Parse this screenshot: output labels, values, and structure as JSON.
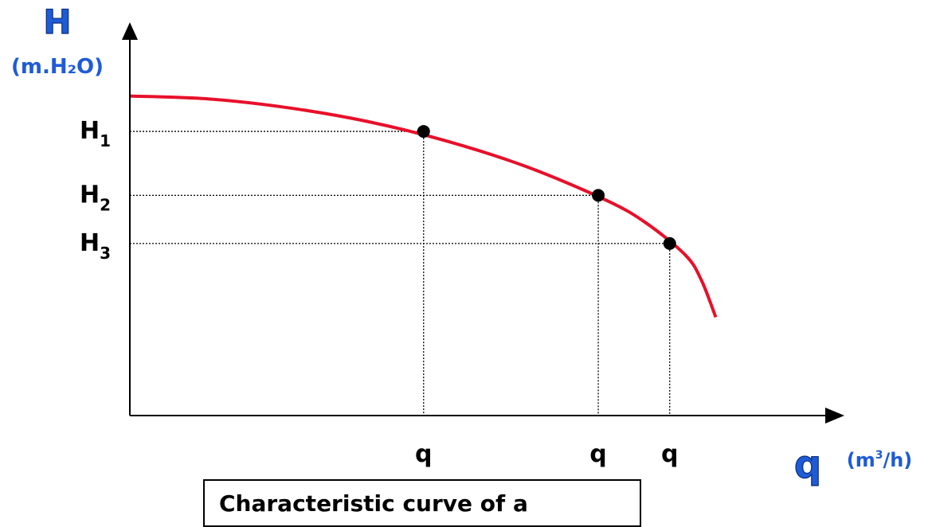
{
  "chart_data": {
    "type": "line",
    "title": "",
    "y_axis": {
      "symbol": "H",
      "unit_label": "(m.H₂O)"
    },
    "x_axis": {
      "symbol": "q",
      "unit_label_prefix": "(m",
      "unit_superscript": "3",
      "unit_label_suffix": "/h)"
    },
    "curve_color": "#e8102a",
    "axis_color": "#000000",
    "axis_title_color": "#1f5bd6",
    "series": [
      {
        "x": [
          0,
          10,
          20,
          30,
          40,
          50,
          60,
          65,
          70,
          72,
          73.8
        ],
        "y": [
          100,
          98.8,
          95.2,
          89.6,
          81.6,
          71.2,
          57.6,
          48.4,
          35.2,
          25,
          10
        ]
      }
    ],
    "operating_points": [
      {
        "label": "H",
        "subscript": "1",
        "x_label": "q",
        "x": 37,
        "y": 85.6
      },
      {
        "label": "H",
        "subscript": "2",
        "x_label": "q",
        "x": 59,
        "y": 59.6
      },
      {
        "label": "H",
        "subscript": "3",
        "x_label": "q",
        "x": 68,
        "y": 40
      }
    ],
    "xlim": [
      0,
      90
    ],
    "ylim": [
      -30,
      130
    ],
    "grid": false,
    "legend": "none"
  },
  "caption": {
    "text": "Characteristic curve of a"
  }
}
